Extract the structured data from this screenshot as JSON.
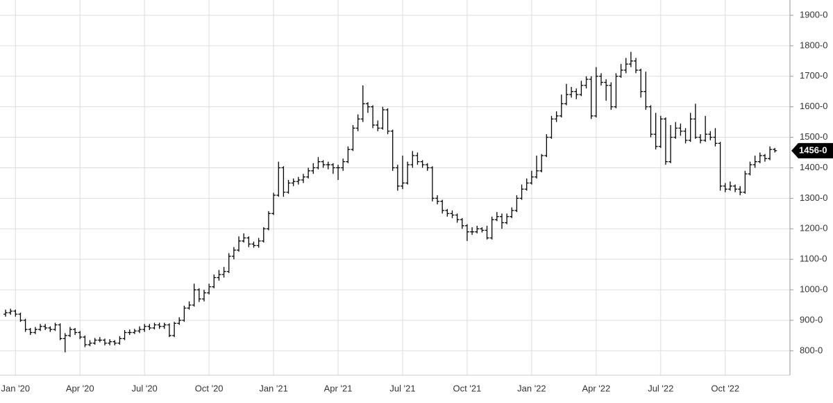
{
  "chart_data": {
    "type": "ohlc",
    "color": "#000000",
    "grid": true,
    "categories": [
      null,
      null,
      "Jan '20",
      null,
      null,
      null,
      null,
      null,
      null,
      null,
      null,
      null,
      null,
      null,
      null,
      "Apr '20",
      null,
      null,
      null,
      null,
      null,
      null,
      null,
      null,
      null,
      null,
      null,
      null,
      "Jul '20",
      null,
      null,
      null,
      null,
      null,
      null,
      null,
      null,
      null,
      null,
      null,
      null,
      "Oct '20",
      null,
      null,
      null,
      null,
      null,
      null,
      null,
      null,
      null,
      null,
      null,
      null,
      "Jan '21",
      null,
      null,
      null,
      null,
      null,
      null,
      null,
      null,
      null,
      null,
      null,
      null,
      "Apr '21",
      null,
      null,
      null,
      null,
      null,
      null,
      null,
      null,
      null,
      null,
      null,
      null,
      "Jul '21",
      null,
      null,
      null,
      null,
      null,
      null,
      null,
      null,
      null,
      null,
      null,
      null,
      "Oct '21",
      null,
      null,
      null,
      null,
      null,
      null,
      null,
      null,
      null,
      null,
      null,
      null,
      "Jan '22",
      null,
      null,
      null,
      null,
      null,
      null,
      null,
      null,
      null,
      null,
      null,
      null,
      "Apr '22",
      null,
      null,
      null,
      null,
      null,
      null,
      null,
      null,
      null,
      null,
      null,
      null,
      "Jul '22",
      null,
      null,
      null,
      null,
      null,
      null,
      null,
      null,
      null,
      null,
      null,
      null,
      "Oct '22",
      null,
      null,
      null,
      null,
      null,
      null,
      null,
      null,
      null,
      null
    ],
    "open": [
      920,
      925,
      930,
      920,
      900,
      870,
      860,
      870,
      880,
      875,
      870,
      885,
      840,
      850,
      870,
      860,
      845,
      820,
      825,
      835,
      835,
      825,
      830,
      825,
      840,
      860,
      860,
      865,
      870,
      880,
      875,
      885,
      880,
      885,
      850,
      890,
      900,
      940,
      950,
      1000,
      970,
      990,
      1010,
      1040,
      1050,
      1060,
      1110,
      1130,
      1160,
      1170,
      1150,
      1145,
      1160,
      1200,
      1250,
      1310,
      1400,
      1320,
      1350,
      1355,
      1360,
      1370,
      1390,
      1400,
      1420,
      1410,
      1410,
      1400,
      1400,
      1420,
      1460,
      1530,
      1560,
      1610,
      1600,
      1540,
      1530,
      1590,
      1520,
      1400,
      1340,
      1350,
      1410,
      1440,
      1420,
      1410,
      1400,
      1300,
      1290,
      1260,
      1250,
      1245,
      1230,
      1210,
      1190,
      1190,
      1200,
      1195,
      1170,
      1230,
      1240,
      1220,
      1240,
      1260,
      1300,
      1330,
      1350,
      1370,
      1390,
      1440,
      1500,
      1560,
      1570,
      1610,
      1640,
      1650,
      1640,
      1670,
      1690,
      1570,
      1700,
      1680,
      1670,
      1600,
      1700,
      1720,
      1740,
      1750,
      1720,
      1650,
      1600,
      1510,
      1470,
      1560,
      1420,
      1500,
      1530,
      1520,
      1490,
      1560,
      1500,
      1490,
      1510,
      1500,
      1480,
      1340,
      1330,
      1340,
      1330,
      1320,
      1380,
      1410,
      1420,
      1440,
      1430,
      1460
    ],
    "high": [
      935,
      938,
      935,
      925,
      905,
      875,
      878,
      888,
      888,
      880,
      892,
      890,
      858,
      878,
      875,
      865,
      850,
      835,
      842,
      845,
      840,
      838,
      835,
      848,
      868,
      870,
      872,
      880,
      888,
      888,
      892,
      892,
      892,
      890,
      895,
      910,
      948,
      962,
      1020,
      1005,
      1000,
      1020,
      1050,
      1065,
      1075,
      1120,
      1140,
      1175,
      1185,
      1175,
      1158,
      1170,
      1205,
      1258,
      1318,
      1420,
      1405,
      1360,
      1365,
      1370,
      1380,
      1400,
      1415,
      1435,
      1425,
      1420,
      1415,
      1410,
      1430,
      1470,
      1540,
      1575,
      1670,
      1615,
      1605,
      1555,
      1600,
      1595,
      1525,
      1410,
      1440,
      1420,
      1455,
      1450,
      1425,
      1415,
      1405,
      1310,
      1295,
      1265,
      1260,
      1250,
      1235,
      1215,
      1205,
      1210,
      1205,
      1210,
      1240,
      1255,
      1250,
      1250,
      1270,
      1310,
      1345,
      1365,
      1390,
      1440,
      1445,
      1510,
      1570,
      1585,
      1640,
      1675,
      1665,
      1660,
      1685,
      1700,
      1700,
      1730,
      1710,
      1690,
      1680,
      1710,
      1740,
      1760,
      1780,
      1760,
      1725,
      1715,
      1605,
      1580,
      1570,
      1565,
      1540,
      1550,
      1545,
      1530,
      1580,
      1610,
      1510,
      1570,
      1520,
      1530,
      1485,
      1350,
      1355,
      1345,
      1340,
      1390,
      1420,
      1440,
      1450,
      1445,
      1470,
      1465
    ],
    "low": [
      912,
      918,
      912,
      895,
      862,
      852,
      855,
      865,
      868,
      862,
      865,
      835,
      795,
      845,
      852,
      838,
      812,
      815,
      820,
      828,
      818,
      818,
      818,
      820,
      835,
      852,
      855,
      858,
      862,
      868,
      870,
      872,
      872,
      845,
      845,
      885,
      895,
      935,
      945,
      960,
      962,
      985,
      1005,
      1030,
      1040,
      1055,
      1100,
      1125,
      1155,
      1140,
      1138,
      1138,
      1155,
      1195,
      1245,
      1305,
      1305,
      1315,
      1340,
      1345,
      1350,
      1365,
      1380,
      1395,
      1400,
      1395,
      1380,
      1360,
      1390,
      1415,
      1455,
      1520,
      1550,
      1580,
      1530,
      1520,
      1525,
      1510,
      1390,
      1325,
      1330,
      1345,
      1400,
      1410,
      1400,
      1390,
      1290,
      1280,
      1250,
      1240,
      1235,
      1220,
      1200,
      1160,
      1180,
      1185,
      1188,
      1165,
      1165,
      1225,
      1200,
      1215,
      1235,
      1255,
      1295,
      1325,
      1345,
      1365,
      1385,
      1435,
      1495,
      1550,
      1565,
      1605,
      1630,
      1625,
      1635,
      1660,
      1560,
      1565,
      1670,
      1620,
      1590,
      1595,
      1695,
      1710,
      1730,
      1710,
      1630,
      1590,
      1500,
      1460,
      1465,
      1410,
      1415,
      1495,
      1505,
      1480,
      1485,
      1495,
      1480,
      1485,
      1490,
      1470,
      1325,
      1320,
      1325,
      1320,
      1310,
      1315,
      1375,
      1400,
      1415,
      1420,
      1425,
      1450
    ],
    "close": [
      925,
      930,
      920,
      900,
      870,
      860,
      870,
      880,
      875,
      870,
      885,
      840,
      850,
      870,
      860,
      845,
      820,
      825,
      835,
      835,
      825,
      830,
      825,
      840,
      860,
      860,
      865,
      870,
      880,
      875,
      885,
      880,
      885,
      850,
      890,
      900,
      940,
      950,
      1000,
      970,
      990,
      1010,
      1040,
      1050,
      1060,
      1110,
      1130,
      1160,
      1170,
      1150,
      1145,
      1160,
      1200,
      1250,
      1310,
      1400,
      1320,
      1350,
      1355,
      1360,
      1370,
      1390,
      1400,
      1420,
      1410,
      1410,
      1400,
      1400,
      1420,
      1460,
      1530,
      1560,
      1610,
      1600,
      1540,
      1530,
      1590,
      1520,
      1400,
      1340,
      1350,
      1410,
      1440,
      1420,
      1410,
      1400,
      1300,
      1290,
      1260,
      1250,
      1245,
      1230,
      1210,
      1190,
      1190,
      1200,
      1195,
      1170,
      1230,
      1240,
      1220,
      1240,
      1260,
      1300,
      1330,
      1350,
      1370,
      1390,
      1440,
      1500,
      1560,
      1570,
      1610,
      1640,
      1650,
      1640,
      1670,
      1690,
      1570,
      1700,
      1680,
      1670,
      1600,
      1700,
      1720,
      1740,
      1750,
      1720,
      1650,
      1600,
      1510,
      1470,
      1560,
      1420,
      1500,
      1530,
      1520,
      1490,
      1560,
      1500,
      1490,
      1510,
      1500,
      1480,
      1340,
      1330,
      1340,
      1330,
      1320,
      1380,
      1410,
      1420,
      1440,
      1430,
      1460,
      1456
    ],
    "ylim": [
      720,
      1950
    ],
    "yticks": [
      {
        "value": 800,
        "label": "800-0"
      },
      {
        "value": 900,
        "label": "900-0"
      },
      {
        "value": 1000,
        "label": "1000-0"
      },
      {
        "value": 1100,
        "label": "1100-0"
      },
      {
        "value": 1200,
        "label": "1200-0"
      },
      {
        "value": 1300,
        "label": "1300-0"
      },
      {
        "value": 1400,
        "label": "1400-0"
      },
      {
        "value": 1500,
        "label": "1500-0"
      },
      {
        "value": 1600,
        "label": "1600-0"
      },
      {
        "value": 1700,
        "label": "1700-0"
      },
      {
        "value": 1800,
        "label": "1800-0"
      },
      {
        "value": 1900,
        "label": "1900-0"
      }
    ],
    "last_price": {
      "value": 1456,
      "label": "1456-0"
    }
  }
}
